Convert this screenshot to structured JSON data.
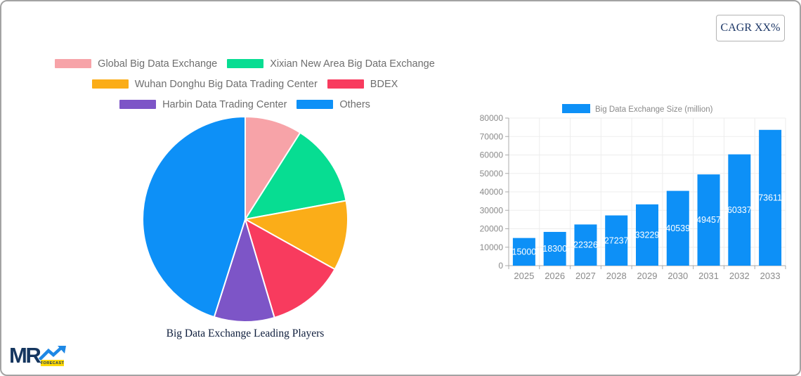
{
  "cagr_badge": {
    "label": "CAGR XX%"
  },
  "logo": {
    "text": "MR",
    "sub": "FORECAST"
  },
  "chart_data": [
    {
      "type": "pie",
      "title": "Big Data Exchange Leading Players",
      "labels": [
        "Global Big Data Exchange",
        "Xixian New Area Big Data Exchange",
        "Wuhan Donghu Big Data Trading Center",
        "BDEX",
        "Harbin Data Trading Center",
        "Others"
      ],
      "values": [
        9.0,
        13.1,
        11.0,
        12.3,
        9.5,
        45.1
      ],
      "colors": [
        "#f7a3a8",
        "#07dd92",
        "#fbad18",
        "#f83b5e",
        "#7d55c7",
        "#0d90f7"
      ],
      "start_angle": "top",
      "direction": "clockwise",
      "legend_rows": [
        [
          0,
          1
        ],
        [
          2,
          3
        ],
        [
          4,
          5
        ]
      ],
      "legend_position": "top"
    },
    {
      "type": "bar",
      "legend": "Big Data Exchange Size (million)",
      "categories": [
        "2025",
        "2026",
        "2027",
        "2028",
        "2029",
        "2030",
        "2031",
        "2032",
        "2033"
      ],
      "values": [
        15000,
        18300,
        22326,
        27237,
        33229,
        40539,
        49457,
        60337,
        73611
      ],
      "bar_color": "#0d90f7",
      "value_label_color": "#ffffff",
      "ylim": [
        0,
        80000
      ],
      "ytick_step": 10000,
      "yticks": [
        "0",
        "10000",
        "20000",
        "30000",
        "40000",
        "50000",
        "60000",
        "70000",
        "80000"
      ],
      "grid": true,
      "legend_position": "top"
    }
  ],
  "colors": {
    "axis": "#ababab",
    "gridline": "#ededed",
    "tick_label": "#8a8a8a",
    "legend_text": "#6e6e6e",
    "bar_legend_text": "#8a8a8a",
    "frame_border": "#a3a3a3",
    "title_text": "#0e1d3c",
    "cagr_text": "#1b3666",
    "logo_navy": "#15365f",
    "logo_arrow_blue": "#1e88e5",
    "logo_yellow": "#ffd903"
  }
}
